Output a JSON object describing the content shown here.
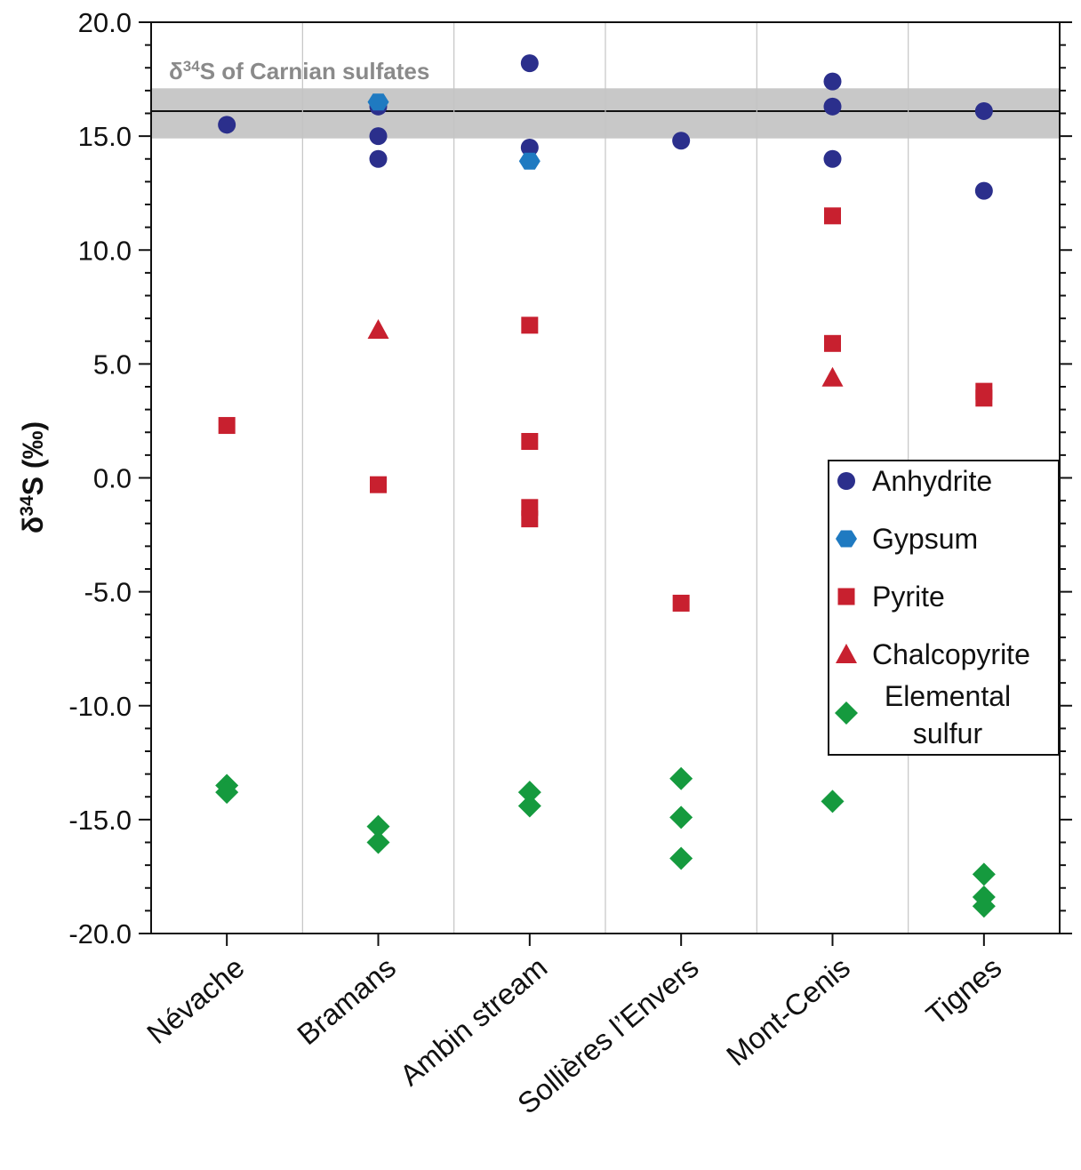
{
  "chart_data": {
    "type": "scatter",
    "ylabel_main": "δ",
    "ylabel_sup": "34",
    "ylabel_rest": "S (‰)",
    "ylim": [
      -20,
      20
    ],
    "yticks": [
      "20.0",
      "15.0",
      "10.0",
      "5.0",
      "0.0",
      "-5.0",
      "-10.0",
      "-15.0",
      "-20.0"
    ],
    "ytick_values": [
      20,
      15,
      10,
      5,
      0,
      -5,
      -10,
      -15,
      -20
    ],
    "categories": [
      "Névache",
      "Bramans",
      "Ambin stream",
      "Sollières l’Envers",
      "Mont-Cenis",
      "Tignes"
    ],
    "reference_band": {
      "label_main": "δ",
      "label_sup": "34",
      "label_rest": "S of Carnian sulfates",
      "low": 14.9,
      "high": 17.1,
      "line": 16.1,
      "color": "#c8c8c8"
    },
    "legend_position": "right",
    "series": [
      {
        "name": "Anhydrite",
        "marker": "circle",
        "color": "#2b2f8c",
        "points": [
          [
            0,
            15.5
          ],
          [
            1,
            16.3
          ],
          [
            1,
            15.0
          ],
          [
            1,
            14.0
          ],
          [
            2,
            18.2
          ],
          [
            2,
            14.5
          ],
          [
            3,
            14.8
          ],
          [
            4,
            17.4
          ],
          [
            4,
            16.3
          ],
          [
            4,
            14.0
          ],
          [
            5,
            16.1
          ],
          [
            5,
            12.6
          ]
        ]
      },
      {
        "name": "Gypsum",
        "marker": "hexagon",
        "color": "#1f7ac1",
        "points": [
          [
            1,
            16.5
          ],
          [
            2,
            13.9
          ]
        ]
      },
      {
        "name": "Pyrite",
        "marker": "square",
        "color": "#c8202f",
        "points": [
          [
            0,
            2.3
          ],
          [
            1,
            -0.3
          ],
          [
            2,
            6.7
          ],
          [
            2,
            1.6
          ],
          [
            2,
            -1.3
          ],
          [
            2,
            -1.8
          ],
          [
            3,
            -5.5
          ],
          [
            4,
            11.5
          ],
          [
            4,
            5.9
          ],
          [
            5,
            3.8
          ],
          [
            5,
            3.5
          ]
        ]
      },
      {
        "name": "Chalcopyrite",
        "marker": "triangle",
        "color": "#c8202f",
        "points": [
          [
            1,
            6.5
          ],
          [
            4,
            4.4
          ]
        ]
      },
      {
        "name": "Elemental sulfur",
        "label_lines": [
          "Elemental",
          "sulfur"
        ],
        "marker": "diamond",
        "color": "#159a3e",
        "points": [
          [
            0,
            -13.5
          ],
          [
            0,
            -13.8
          ],
          [
            1,
            -15.3
          ],
          [
            1,
            -16.0
          ],
          [
            2,
            -13.8
          ],
          [
            2,
            -14.4
          ],
          [
            3,
            -13.2
          ],
          [
            3,
            -14.9
          ],
          [
            3,
            -16.7
          ],
          [
            4,
            -14.2
          ],
          [
            5,
            -17.4
          ],
          [
            5,
            -18.4
          ],
          [
            5,
            -18.8
          ]
        ]
      }
    ]
  }
}
